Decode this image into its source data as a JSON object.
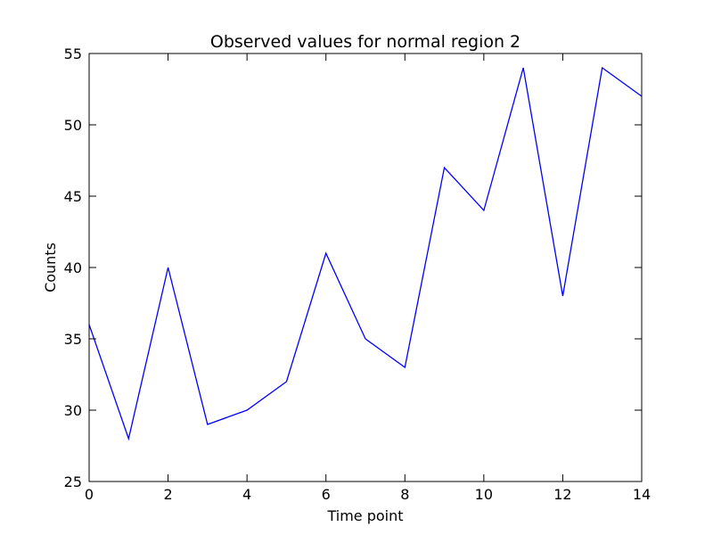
{
  "chart_data": {
    "type": "line",
    "title": "Observed values for normal region 2",
    "xlabel": "Time point",
    "ylabel": "Counts",
    "xlim": [
      0,
      14
    ],
    "ylim": [
      25,
      55
    ],
    "xticks": [
      0,
      2,
      4,
      6,
      8,
      10,
      12,
      14
    ],
    "yticks": [
      25,
      30,
      35,
      40,
      45,
      50,
      55
    ],
    "grid": false,
    "line_color": "#0000ff",
    "series": [
      {
        "x": [
          0,
          1,
          2,
          3,
          4,
          5,
          6,
          7,
          8,
          9,
          10,
          11,
          12,
          13,
          14
        ],
        "values": [
          36,
          28,
          40,
          29,
          30,
          32,
          41,
          35,
          33,
          47,
          44,
          54,
          38,
          54,
          52
        ]
      }
    ]
  }
}
